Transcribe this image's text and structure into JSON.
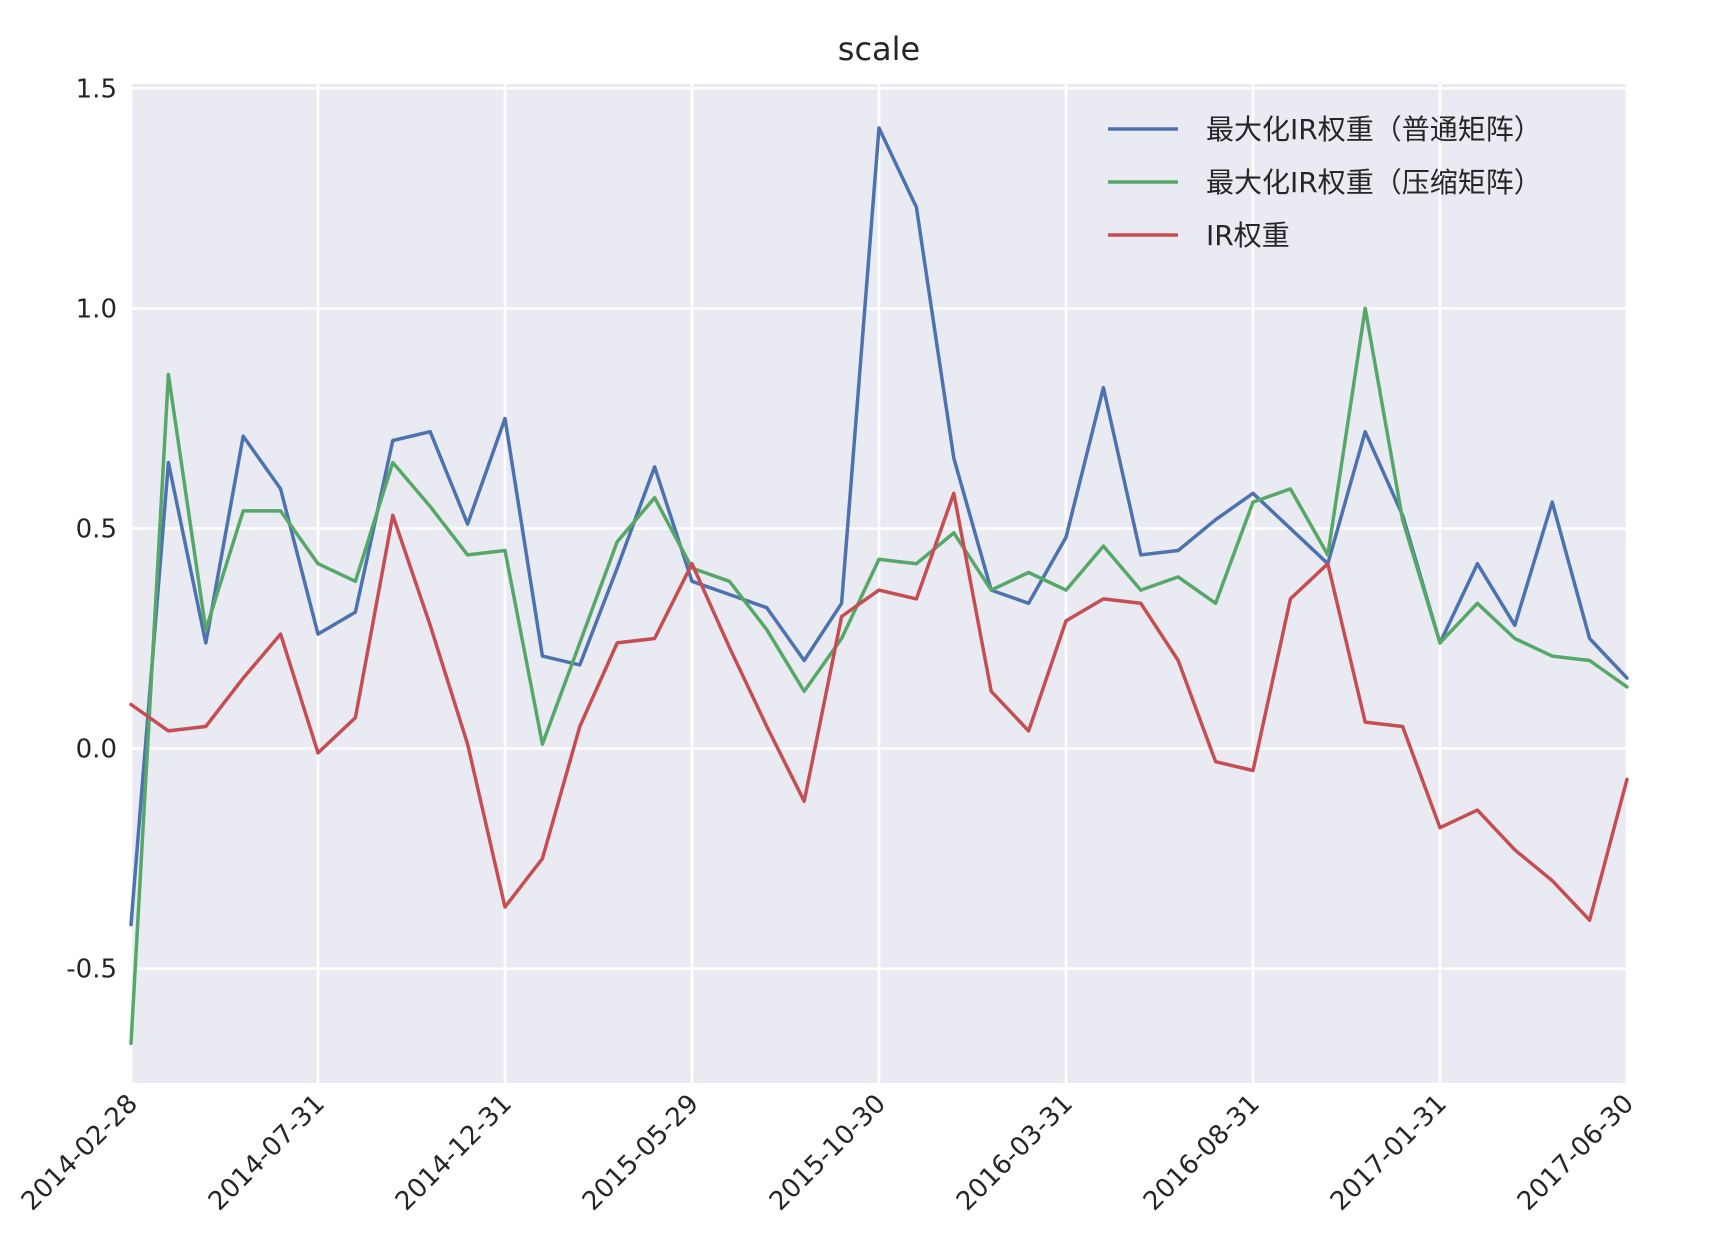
{
  "chart_data": {
    "type": "line",
    "title": "scale",
    "xlabel": "",
    "ylabel": "",
    "ylim": [
      -0.76,
      1.51
    ],
    "y_ticks": [
      -0.5,
      0.0,
      0.5,
      1.0,
      1.5
    ],
    "y_tick_labels": [
      "-0.5",
      "0.0",
      "0.5",
      "1.0",
      "1.5"
    ],
    "x_tick_labels": [
      "2014-02-28",
      "2014-07-31",
      "2014-12-31",
      "2015-05-29",
      "2015-10-30",
      "2016-03-31",
      "2016-08-31",
      "2017-01-31",
      "2017-06-30"
    ],
    "x_tick_indices": [
      0,
      5,
      10,
      15,
      20,
      25,
      30,
      35,
      40
    ],
    "x": [
      "2014-02-28",
      "2014-03-31",
      "2014-04-30",
      "2014-05-30",
      "2014-06-30",
      "2014-07-31",
      "2014-08-29",
      "2014-09-30",
      "2014-10-31",
      "2014-11-28",
      "2014-12-31",
      "2015-01-30",
      "2015-02-27",
      "2015-03-31",
      "2015-04-30",
      "2015-05-29",
      "2015-06-30",
      "2015-07-31",
      "2015-08-31",
      "2015-09-30",
      "2015-10-30",
      "2015-11-30",
      "2015-12-31",
      "2016-01-29",
      "2016-02-29",
      "2016-03-31",
      "2016-04-29",
      "2016-05-31",
      "2016-06-30",
      "2016-07-29",
      "2016-08-31",
      "2016-09-30",
      "2016-10-31",
      "2016-11-30",
      "2016-12-30",
      "2017-01-31",
      "2017-02-28",
      "2017-03-31",
      "2017-04-28",
      "2017-05-31",
      "2017-06-30"
    ],
    "grid": true,
    "legend_position": "top-right",
    "series": [
      {
        "name": "最大化IR权重（普通矩阵）",
        "color": "#4C72B0",
        "values": [
          -0.4,
          0.65,
          0.24,
          0.71,
          0.59,
          0.26,
          0.31,
          0.7,
          0.72,
          0.51,
          0.75,
          0.21,
          0.19,
          0.41,
          0.64,
          0.38,
          0.35,
          0.32,
          0.2,
          0.33,
          1.41,
          1.23,
          0.66,
          0.36,
          0.33,
          0.48,
          0.82,
          0.44,
          0.45,
          0.52,
          0.58,
          0.5,
          0.42,
          0.72,
          0.53,
          0.24,
          0.42,
          0.28,
          0.56,
          0.25,
          0.16
        ]
      },
      {
        "name": "最大化IR权重（压缩矩阵）",
        "color": "#55A868",
        "values": [
          -0.67,
          0.85,
          0.27,
          0.54,
          0.54,
          0.42,
          0.38,
          0.65,
          0.55,
          0.44,
          0.45,
          0.01,
          0.24,
          0.47,
          0.57,
          0.41,
          0.38,
          0.27,
          0.13,
          0.25,
          0.43,
          0.42,
          0.49,
          0.36,
          0.4,
          0.36,
          0.46,
          0.36,
          0.39,
          0.33,
          0.56,
          0.59,
          0.44,
          1.0,
          0.52,
          0.24,
          0.33,
          0.25,
          0.21,
          0.2,
          0.14
        ]
      },
      {
        "name": "IR权重",
        "color": "#C44E52",
        "values": [
          0.1,
          0.04,
          0.05,
          0.16,
          0.26,
          -0.01,
          0.07,
          0.53,
          0.28,
          0.01,
          -0.36,
          -0.25,
          0.05,
          0.24,
          0.25,
          0.42,
          0.23,
          0.05,
          -0.12,
          0.3,
          0.36,
          0.34,
          0.58,
          0.13,
          0.04,
          0.29,
          0.34,
          0.33,
          0.2,
          -0.03,
          -0.05,
          0.34,
          0.42,
          0.06,
          0.05,
          -0.18,
          -0.14,
          -0.23,
          -0.3,
          -0.39,
          -0.07
        ]
      }
    ]
  }
}
